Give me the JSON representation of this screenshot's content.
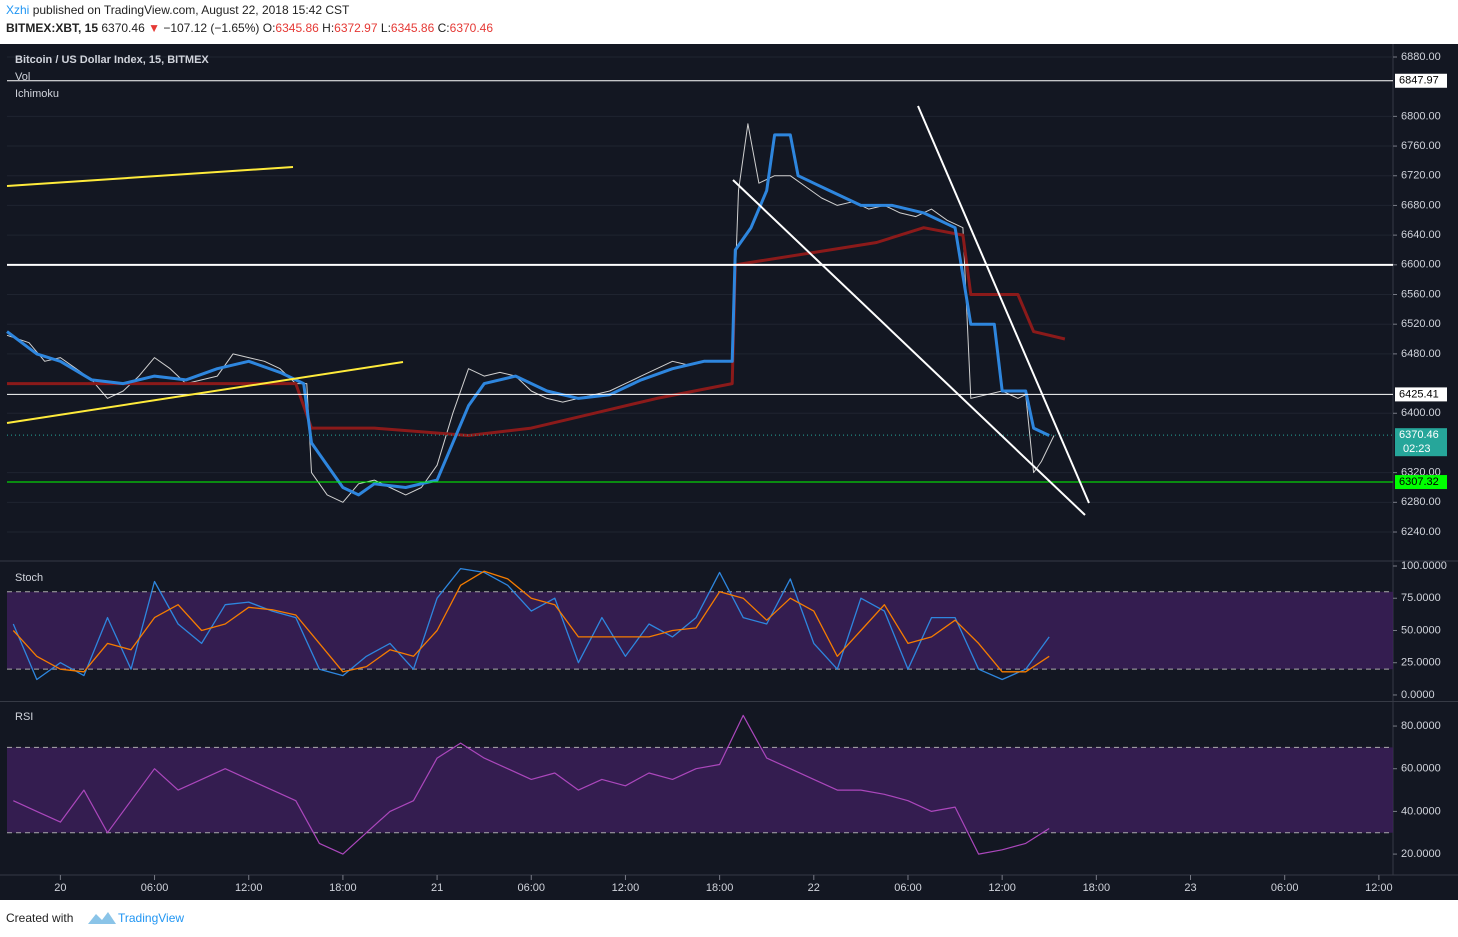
{
  "header": {
    "author": "Xzhi",
    "published": "published on TradingView.com, August 22, 2018 15:42 CST",
    "symbol": "BITMEX:XBT, 15",
    "last": "6370.46",
    "arrow": "▼",
    "change": "−107.12 (−1.65%)",
    "o_label": "O:",
    "o": "6345.86",
    "h_label": "H:",
    "h": "6372.97",
    "l_label": "L:",
    "l": "6345.86",
    "c_label": "C:",
    "c": "6370.46"
  },
  "footer": {
    "created": "Created with",
    "brand": "TradingView"
  },
  "chart_data": [
    {
      "type": "line",
      "title": "Bitcoin / US Dollar Index, 15, BITMEX",
      "labels": [
        "Vol",
        "Ichimoku"
      ],
      "xlim": [
        -3.4,
        84.9
      ],
      "ylim": [
        6202.3,
        6897.5
      ],
      "yticks": [
        {
          "value": 6240,
          "label": "6240.00"
        },
        {
          "value": 6280,
          "label": "6280.00"
        },
        {
          "value": 6320,
          "label": "6320.00"
        },
        {
          "value": 6400,
          "label": "6400.00"
        },
        {
          "value": 6480,
          "label": "6480.00"
        },
        {
          "value": 6520,
          "label": "6520.00"
        },
        {
          "value": 6560,
          "label": "6560.00"
        },
        {
          "value": 6600,
          "label": "6600.00"
        },
        {
          "value": 6640,
          "label": "6640.00"
        },
        {
          "value": 6680,
          "label": "6680.00"
        },
        {
          "value": 6720,
          "label": "6720.00"
        },
        {
          "value": 6760,
          "label": "6760.00"
        },
        {
          "value": 6800,
          "label": "6800.00"
        },
        {
          "value": 6880,
          "label": "6880.00"
        }
      ],
      "grid": true,
      "levels": [
        6847.97,
        6600,
        6425.41,
        6307.32
      ],
      "level_colors": [
        "#ffffff",
        "#ffffff",
        "#ffffff",
        "#00ff00"
      ],
      "level_tags": [
        true,
        false,
        true,
        true
      ],
      "last_price": 6370.46,
      "countdown": "02:23",
      "last_color": "#26a69a",
      "series": [
        {
          "color": "#d0d0d0",
          "x": [
            -3.4,
            -2,
            -1,
            0,
            1,
            2,
            3,
            4,
            5,
            6,
            7,
            8,
            9,
            10,
            11,
            12,
            13,
            14,
            15,
            15.7,
            16,
            17,
            18,
            19,
            20,
            21,
            22,
            23,
            24,
            25,
            26,
            27,
            28,
            29,
            30,
            31,
            32,
            33,
            34,
            35,
            36,
            37,
            38,
            39,
            40,
            41,
            42,
            42.8,
            43.2,
            43.8,
            44.5,
            45.5,
            46.5,
            47.5,
            48.5,
            49.5,
            50.5,
            51.5,
            52.5,
            53.5,
            54.5,
            55.5,
            56.5,
            57.5,
            58,
            59,
            60,
            61,
            61.5,
            62,
            62.5,
            63.3
          ],
          "values": [
            6505,
            6495,
            6470,
            6475,
            6460,
            6445,
            6420,
            6430,
            6450,
            6475,
            6460,
            6440,
            6445,
            6450,
            6480,
            6475,
            6470,
            6460,
            6440,
            6440,
            6320,
            6290,
            6280,
            6305,
            6310,
            6300,
            6290,
            6300,
            6330,
            6400,
            6460,
            6450,
            6455,
            6450,
            6430,
            6420,
            6415,
            6420,
            6425,
            6430,
            6440,
            6450,
            6460,
            6470,
            6465,
            6470,
            6470,
            6470,
            6700,
            6790,
            6710,
            6720,
            6720,
            6705,
            6690,
            6680,
            6685,
            6675,
            6680,
            6670,
            6665,
            6675,
            6660,
            6650,
            6420,
            6425,
            6430,
            6420,
            6425,
            6320,
            6335,
            6370
          ],
          "width": 1
        },
        {
          "color": "#8b1a1a",
          "x": [
            -3.4,
            15,
            16,
            20,
            26,
            30,
            34,
            38,
            42.8,
            43,
            49,
            52,
            55,
            57.5,
            58,
            61,
            62,
            64
          ],
          "values": [
            6440,
            6440,
            6380,
            6380,
            6370,
            6380,
            6400,
            6420,
            6440,
            6600,
            6620,
            6630,
            6650,
            6640,
            6560,
            6560,
            6510,
            6500
          ],
          "width": 3
        },
        {
          "color": "#2e86de",
          "x": [
            -3.4,
            -1.5,
            0,
            2,
            4,
            6,
            8,
            10,
            12,
            14,
            15.5,
            16,
            17,
            18,
            19,
            20,
            22,
            24,
            25,
            26,
            27,
            29,
            31,
            33,
            35,
            37,
            39,
            41,
            42.8,
            43,
            44,
            45,
            45.5,
            46.5,
            47,
            48,
            49,
            51,
            53,
            55,
            57,
            58,
            59.5,
            60,
            61.5,
            62,
            63
          ],
          "values": [
            6510,
            6480,
            6470,
            6445,
            6440,
            6450,
            6445,
            6460,
            6470,
            6455,
            6440,
            6360,
            6330,
            6300,
            6290,
            6305,
            6300,
            6310,
            6360,
            6410,
            6440,
            6450,
            6430,
            6420,
            6425,
            6445,
            6460,
            6470,
            6470,
            6620,
            6650,
            6700,
            6775,
            6775,
            6720,
            6710,
            6700,
            6680,
            6680,
            6670,
            6650,
            6520,
            6520,
            6430,
            6430,
            6380,
            6370
          ],
          "width": 3
        }
      ]
    },
    {
      "type": "line",
      "title": "Stoch",
      "xlim": [
        -3.4,
        84.9
      ],
      "ylim": [
        -3.9,
        103.1
      ],
      "yticks": [
        {
          "value": 0,
          "label": "0.0000"
        },
        {
          "value": 25,
          "label": "25.0000"
        },
        {
          "value": 50,
          "label": "50.0000"
        },
        {
          "value": 75,
          "label": "75.0000"
        },
        {
          "value": 100,
          "label": "100.0000"
        }
      ],
      "bands": [
        20,
        80
      ],
      "band_color": "#3d1f5c",
      "series": [
        {
          "color": "#2e86de",
          "x": [
            -3,
            -1.5,
            0,
            1.5,
            3,
            4.5,
            6,
            7.5,
            9,
            10.5,
            12,
            13.5,
            15,
            16.5,
            18,
            19.5,
            21,
            22.5,
            24,
            25.5,
            27,
            28.5,
            30,
            31.5,
            33,
            34.5,
            36,
            37.5,
            39,
            40.5,
            42,
            43.5,
            45,
            46.5,
            48,
            49.5,
            51,
            52.5,
            54,
            55.5,
            57,
            58.5,
            60,
            61.5,
            63
          ],
          "values": [
            55,
            12,
            25,
            15,
            60,
            20,
            88,
            55,
            40,
            70,
            72,
            65,
            60,
            20,
            15,
            30,
            40,
            20,
            75,
            98,
            95,
            85,
            65,
            75,
            25,
            60,
            30,
            55,
            45,
            60,
            95,
            60,
            55,
            90,
            40,
            20,
            75,
            65,
            20,
            60,
            60,
            20,
            12,
            20,
            45
          ],
          "width": 1.3
        },
        {
          "color": "#f57c00",
          "x": [
            -3,
            -1.5,
            0,
            1.5,
            3,
            4.5,
            6,
            7.5,
            9,
            10.5,
            12,
            13.5,
            15,
            16.5,
            18,
            19.5,
            21,
            22.5,
            24,
            25.5,
            27,
            28.5,
            30,
            31.5,
            33,
            34.5,
            36,
            37.5,
            39,
            40.5,
            42,
            43.5,
            45,
            46.5,
            48,
            49.5,
            51,
            52.5,
            54,
            55.5,
            57,
            58.5,
            60,
            61.5,
            63
          ],
          "values": [
            50,
            30,
            20,
            18,
            40,
            35,
            60,
            70,
            50,
            55,
            68,
            66,
            62,
            40,
            18,
            22,
            35,
            30,
            50,
            85,
            96,
            90,
            75,
            70,
            45,
            45,
            45,
            45,
            50,
            52,
            80,
            75,
            58,
            75,
            65,
            30,
            50,
            70,
            40,
            45,
            58,
            40,
            18,
            18,
            30
          ],
          "width": 1.3
        }
      ]
    },
    {
      "type": "line",
      "title": "RSI",
      "xlim": [
        -3.4,
        84.9
      ],
      "ylim": [
        10.2,
        90.8
      ],
      "yticks": [
        {
          "value": 20,
          "label": "20.0000"
        },
        {
          "value": 40,
          "label": "40.0000"
        },
        {
          "value": 60,
          "label": "60.0000"
        },
        {
          "value": 80,
          "label": "80.0000"
        }
      ],
      "bands": [
        30,
        70
      ],
      "band_color": "#3d1f5c",
      "xticks": [
        {
          "value": 0,
          "label": "20"
        },
        {
          "value": 6,
          "label": "06:00"
        },
        {
          "value": 12,
          "label": "12:00"
        },
        {
          "value": 18,
          "label": "18:00"
        },
        {
          "value": 24,
          "label": "21"
        },
        {
          "value": 30,
          "label": "06:00"
        },
        {
          "value": 36,
          "label": "12:00"
        },
        {
          "value": 42,
          "label": "18:00"
        },
        {
          "value": 48,
          "label": "22"
        },
        {
          "value": 54,
          "label": "06:00"
        },
        {
          "value": 60,
          "label": "12:00"
        },
        {
          "value": 66,
          "label": "18:00"
        },
        {
          "value": 72,
          "label": "23"
        },
        {
          "value": 78,
          "label": "06:00"
        },
        {
          "value": 84,
          "label": "12:00"
        }
      ],
      "series": [
        {
          "color": "#ab47bc",
          "x": [
            -3,
            -1.5,
            0,
            1.5,
            3,
            4.5,
            6,
            7.5,
            9,
            10.5,
            12,
            13.5,
            15,
            16.5,
            18,
            19.5,
            21,
            22.5,
            24,
            25.5,
            27,
            28.5,
            30,
            31.5,
            33,
            34.5,
            36,
            37.5,
            39,
            40.5,
            42,
            43.5,
            45,
            46.5,
            48,
            49.5,
            51,
            52.5,
            54,
            55.5,
            57,
            58.5,
            60,
            61.5,
            63
          ],
          "values": [
            45,
            40,
            35,
            50,
            30,
            45,
            60,
            50,
            55,
            60,
            55,
            50,
            45,
            25,
            20,
            30,
            40,
            45,
            65,
            72,
            65,
            60,
            55,
            58,
            50,
            55,
            52,
            58,
            55,
            60,
            62,
            85,
            65,
            60,
            55,
            50,
            50,
            48,
            45,
            40,
            42,
            20,
            22,
            25,
            32
          ],
          "width": 1.2
        }
      ]
    }
  ]
}
